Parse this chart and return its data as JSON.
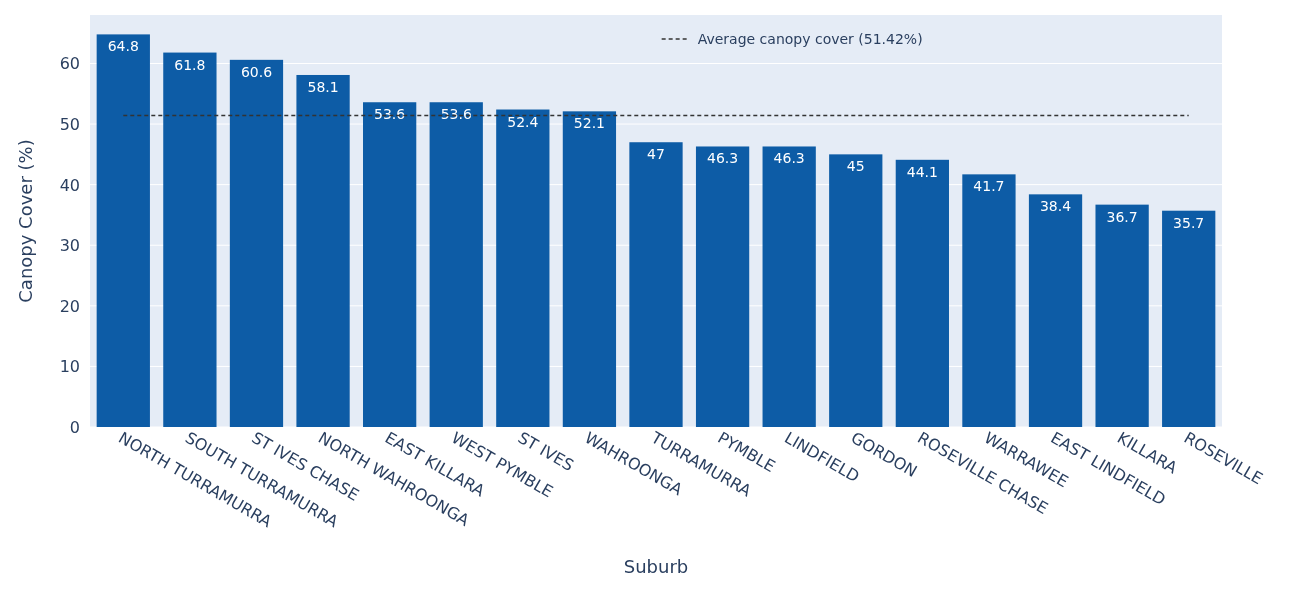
{
  "chart_data": {
    "type": "bar",
    "xlabel": "Suburb",
    "ylabel": "Canopy Cover (%)",
    "categories": [
      "NORTH TURRAMURRA",
      "SOUTH TURRAMURRA",
      "ST IVES CHASE",
      "NORTH WAHROONGA",
      "EAST KILLARA",
      "WEST PYMBLE",
      "ST IVES",
      "WAHROONGA",
      "TURRAMURRA",
      "PYMBLE",
      "LINDFIELD",
      "GORDON",
      "ROSEVILLE CHASE",
      "WARRAWEE",
      "EAST LINDFIELD",
      "KILLARA",
      "ROSEVILLE"
    ],
    "values": [
      64.8,
      61.8,
      60.6,
      58.1,
      53.6,
      53.6,
      52.4,
      52.1,
      47,
      46.3,
      46.3,
      45,
      44.1,
      41.7,
      38.4,
      36.7,
      35.7
    ],
    "color": "#0d5ca6",
    "data_labels": true,
    "ylim": [
      0,
      68
    ],
    "yticks": [
      0,
      10,
      20,
      30,
      40,
      50,
      60
    ],
    "grid": "y",
    "ref_lines": [
      {
        "axis": "y",
        "value": 51.42,
        "label": "Average canopy cover (51.42%)",
        "color": "#333333",
        "line_style": "dashed"
      }
    ],
    "legend": "top"
  }
}
